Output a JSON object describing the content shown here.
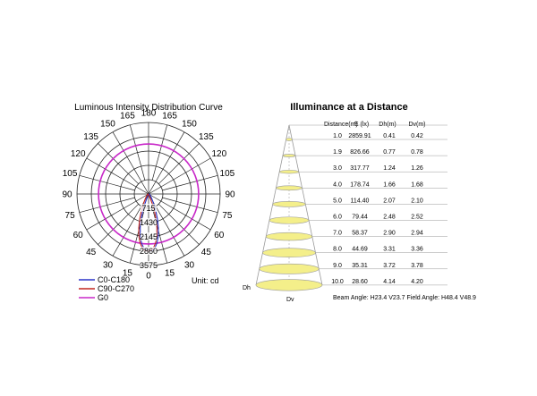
{
  "colors": {
    "c0": "#2b35c9",
    "c90": "#c2261f",
    "g0": "#c828c8",
    "grid": "#222222",
    "cone_fill": "#f4ef8a",
    "cone_stroke": "#9a9a9a"
  },
  "chart_data": [
    {
      "type": "polar",
      "title": "Luminous Intensity Distribution Curve",
      "unit": "Unit: cd",
      "angle_labels": [
        "0",
        "15",
        "30",
        "45",
        "60",
        "75",
        "90",
        "105",
        "120",
        "135",
        "150",
        "165",
        "180",
        "165",
        "150",
        "135",
        "120",
        "105",
        "90",
        "75",
        "60",
        "45",
        "30",
        "15"
      ],
      "radial_labels": [
        "715",
        "1430",
        "2145",
        "2860",
        "3575"
      ],
      "r_max": 3575,
      "legend": [
        {
          "key": "c0",
          "label": "C0-C180"
        },
        {
          "key": "c90",
          "label": "C90-C270"
        },
        {
          "key": "g0",
          "label": "G0"
        }
      ],
      "series": [
        {
          "key": "c0",
          "angles": [
            0,
            3,
            6,
            9,
            12,
            15,
            18,
            21,
            24,
            27,
            30,
            33,
            36,
            39,
            42,
            45,
            -3,
            -6,
            -9,
            -12,
            -15,
            -18,
            -21,
            -24,
            -27,
            -30,
            -33,
            -36,
            -39,
            -42,
            -45
          ],
          "values": [
            2860,
            2830,
            2700,
            2480,
            2150,
            1750,
            1320,
            900,
            560,
            320,
            170,
            80,
            40,
            15,
            5,
            0,
            2830,
            2700,
            2480,
            2150,
            1750,
            1320,
            900,
            560,
            320,
            170,
            80,
            40,
            15,
            5,
            0
          ]
        },
        {
          "key": "c90",
          "angles": [
            0,
            3,
            6,
            9,
            12,
            15,
            18,
            21,
            24,
            27,
            30,
            33,
            36,
            39,
            42,
            45,
            -3,
            -6,
            -9,
            -12,
            -15,
            -18,
            -21,
            -24,
            -27,
            -30,
            -33,
            -36,
            -39,
            -42,
            -45
          ],
          "values": [
            2860,
            2830,
            2700,
            2480,
            2150,
            1750,
            1320,
            900,
            560,
            320,
            170,
            80,
            40,
            15,
            5,
            0,
            2830,
            2700,
            2480,
            2150,
            1750,
            1320,
            900,
            560,
            320,
            170,
            80,
            40,
            15,
            5,
            0
          ]
        },
        {
          "key": "g0",
          "constant_value": 2500
        }
      ]
    },
    {
      "type": "table",
      "title": "Illuminance at a Distance",
      "columns": [
        "Distance(m)",
        "E (lx)",
        "Dh(m)",
        "Dv(m)"
      ],
      "rows": [
        [
          "1.0",
          "2859.91",
          "0.41",
          "0.42"
        ],
        [
          "1.9",
          "826.66",
          "0.77",
          "0.78"
        ],
        [
          "3.0",
          "317.77",
          "1.24",
          "1.26"
        ],
        [
          "4.0",
          "178.74",
          "1.66",
          "1.68"
        ],
        [
          "5.0",
          "114.40",
          "2.07",
          "2.10"
        ],
        [
          "6.0",
          "79.44",
          "2.48",
          "2.52"
        ],
        [
          "7.0",
          "58.37",
          "2.90",
          "2.94"
        ],
        [
          "8.0",
          "44.69",
          "3.31",
          "3.36"
        ],
        [
          "9.0",
          "35.31",
          "3.72",
          "3.78"
        ],
        [
          "10.0",
          "28.60",
          "4.14",
          "4.20"
        ]
      ],
      "dh_label": "Dh",
      "dv_label": "Dv",
      "footer": "Beam Angle: H23.4 V23.7  Field Angle: H48.4 V48.9"
    }
  ]
}
